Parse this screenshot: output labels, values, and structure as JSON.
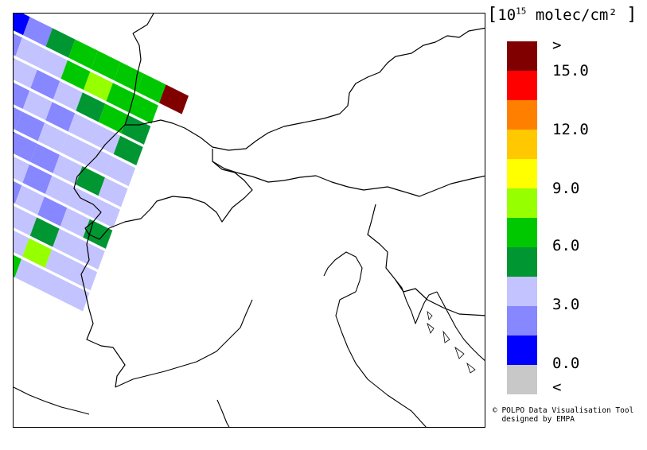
{
  "legend": {
    "unit_prefix": "10",
    "unit_exponent": "15",
    "unit_suffix": " molec/cm²",
    "open_bracket": "[",
    "close_bracket": "]",
    "colors": [
      "#800000",
      "#ff0000",
      "#ff8000",
      "#ffc800",
      "#ffff00",
      "#96ff00",
      "#00c800",
      "#009632",
      "#c3c3ff",
      "#8787ff",
      "#0000ff",
      "#c8c8c8"
    ],
    "labels": {
      "top": ">",
      "v15": "15.0",
      "v12": "12.0",
      "v9": "9.0",
      "v6": "6.0",
      "v3": "3.0",
      "v0": "0.0",
      "bottom": "<"
    }
  },
  "credit": {
    "line1": "© POLPO Data Visualisation Tool",
    "line2": "  designed by EMPA"
  }
}
